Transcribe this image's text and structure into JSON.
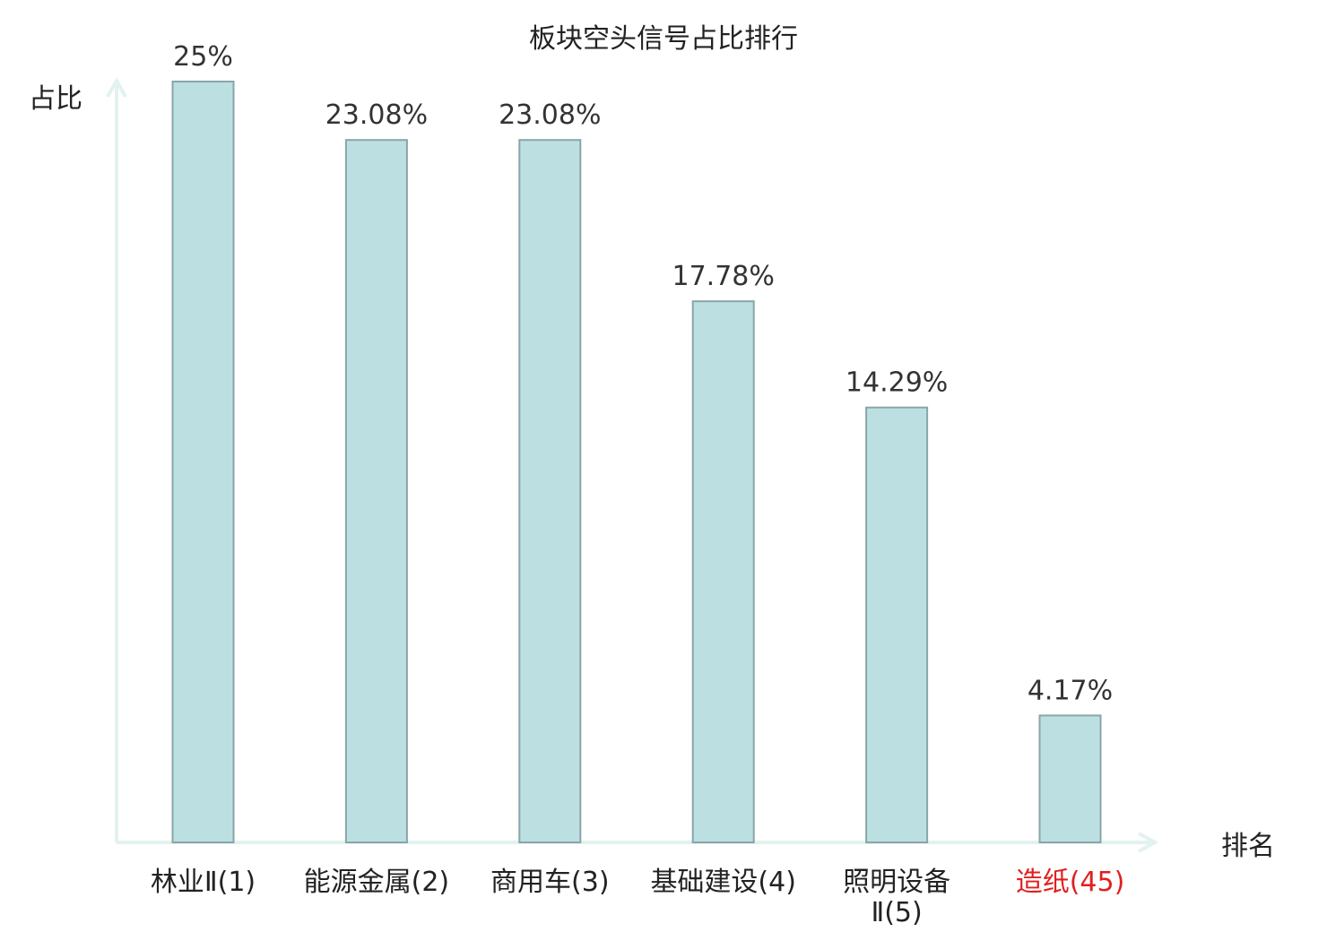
{
  "chart_data": {
    "type": "bar",
    "title": "板块空头信号占比排行",
    "ylabel": "占比",
    "xlabel": "排名",
    "categories": [
      [
        "林业Ⅱ(1)"
      ],
      [
        "能源金属(2)"
      ],
      [
        "商用车(3)"
      ],
      [
        "基础建设(4)"
      ],
      [
        "照明设备",
        "Ⅱ(5)"
      ],
      [
        "造纸(45)"
      ]
    ],
    "values": [
      25,
      23.08,
      23.08,
      17.78,
      14.29,
      4.17
    ],
    "value_labels": [
      "25%",
      "23.08%",
      "23.08%",
      "17.78%",
      "14.29%",
      "4.17%"
    ],
    "highlight_index": 5,
    "ylim": [
      0,
      25
    ],
    "grid": false,
    "colors": {
      "bar_fill": "#bce0e2",
      "bar_stroke": "#8aa5a8",
      "axis": "#e2f2ef",
      "text": "#222222",
      "highlight": "#e02020"
    }
  }
}
